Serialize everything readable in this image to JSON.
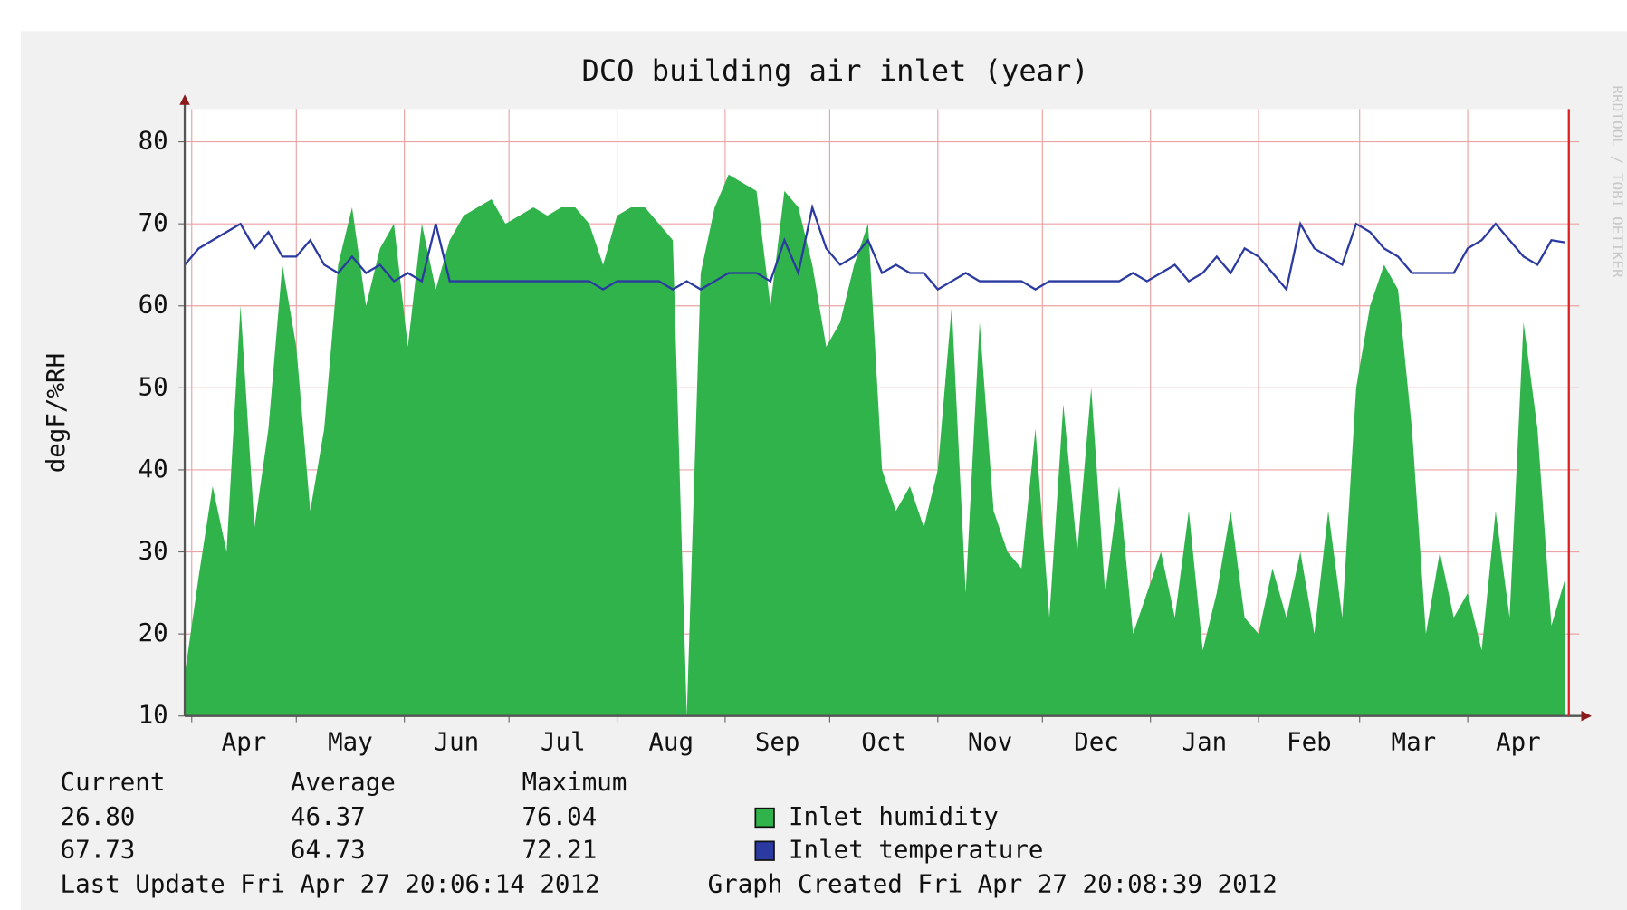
{
  "chart_data": {
    "type": "area-line",
    "title": "DCO building air inlet (year)",
    "y_label": "degF/%RH",
    "watermark": "RRDTOOL / TOBI OETIKER",
    "x": [
      0,
      4,
      8,
      12,
      16,
      20,
      24,
      28,
      32,
      36,
      40,
      44,
      48,
      52,
      56,
      60,
      64,
      68,
      72,
      76,
      80,
      84,
      88,
      92,
      96,
      100,
      104,
      108,
      112,
      116,
      120,
      124,
      128,
      132,
      136,
      140,
      144,
      148,
      152,
      156,
      160,
      164,
      168,
      172,
      176,
      180,
      184,
      188,
      192,
      196,
      200,
      204,
      208,
      212,
      216,
      220,
      224,
      228,
      232,
      236,
      240,
      244,
      248,
      252,
      256,
      260,
      264,
      268,
      272,
      276,
      280,
      284,
      288,
      292,
      296,
      300,
      304,
      308,
      312,
      316,
      320,
      324,
      328,
      332,
      336,
      340,
      344,
      348,
      352,
      356,
      360,
      364,
      368,
      372,
      376,
      380,
      384,
      388,
      392,
      396
    ],
    "xlim": [
      0,
      397
    ],
    "xticks": [
      {
        "value": 2,
        "label": "Apr"
      },
      {
        "value": 32,
        "label": "May"
      },
      {
        "value": 63,
        "label": "Jun"
      },
      {
        "value": 93,
        "label": "Jul"
      },
      {
        "value": 124,
        "label": "Aug"
      },
      {
        "value": 155,
        "label": "Sep"
      },
      {
        "value": 185,
        "label": "Oct"
      },
      {
        "value": 216,
        "label": "Nov"
      },
      {
        "value": 246,
        "label": "Dec"
      },
      {
        "value": 277,
        "label": "Jan"
      },
      {
        "value": 308,
        "label": "Feb"
      },
      {
        "value": 337,
        "label": "Mar"
      },
      {
        "value": 368,
        "label": "Apr"
      }
    ],
    "ylim": [
      10,
      84
    ],
    "yticks": [
      10,
      20,
      30,
      40,
      50,
      60,
      70,
      80
    ],
    "grid": true,
    "series": [
      {
        "name": "Inlet humidity",
        "color": "#2fb34a",
        "style": "area",
        "stats": [
          "26.80",
          "46.37",
          "76.04"
        ],
        "values": [
          15,
          27,
          38,
          30,
          60,
          33,
          45,
          65,
          55,
          35,
          45,
          65,
          72,
          60,
          67,
          70,
          55,
          70,
          62,
          68,
          71,
          72,
          73,
          70,
          71,
          72,
          71,
          72,
          72,
          70,
          65,
          71,
          72,
          72,
          70,
          68,
          10,
          64,
          72,
          76,
          75,
          74,
          60,
          74,
          72,
          65,
          55,
          58,
          65,
          70,
          40,
          35,
          38,
          33,
          40,
          60,
          25,
          58,
          35,
          30,
          28,
          45,
          22,
          48,
          30,
          50,
          25,
          38,
          20,
          25,
          30,
          22,
          35,
          18,
          25,
          35,
          22,
          20,
          28,
          22,
          30,
          20,
          35,
          22,
          50,
          60,
          65,
          62,
          45,
          20,
          30,
          22,
          25,
          18,
          35,
          22,
          58,
          45,
          21,
          26.8
        ]
      },
      {
        "name": "Inlet temperature",
        "color": "#2b3aa0",
        "style": "line",
        "stats": [
          "67.73",
          "64.73",
          "72.21"
        ],
        "values": [
          65,
          67,
          68,
          69,
          70,
          67,
          69,
          66,
          66,
          68,
          65,
          64,
          66,
          64,
          65,
          63,
          64,
          63,
          70,
          63,
          63,
          63,
          63,
          63,
          63,
          63,
          63,
          63,
          63,
          63,
          62,
          63,
          63,
          63,
          63,
          62,
          63,
          62,
          63,
          64,
          64,
          64,
          63,
          68,
          64,
          72,
          67,
          65,
          66,
          68,
          64,
          65,
          64,
          64,
          62,
          63,
          64,
          63,
          63,
          63,
          63,
          62,
          63,
          63,
          63,
          63,
          63,
          63,
          64,
          63,
          64,
          65,
          63,
          64,
          66,
          64,
          67,
          66,
          64,
          62,
          70,
          67,
          66,
          65,
          70,
          69,
          67,
          66,
          64,
          64,
          64,
          64,
          67,
          68,
          70,
          68,
          66,
          65,
          68,
          67.73
        ]
      }
    ],
    "stats_headers": [
      "Current",
      "Average",
      "Maximum"
    ],
    "footer": [
      "Last Update Fri Apr 27 20:06:14 2012",
      "Graph Created Fri Apr 27 20:08:39 2012"
    ]
  }
}
